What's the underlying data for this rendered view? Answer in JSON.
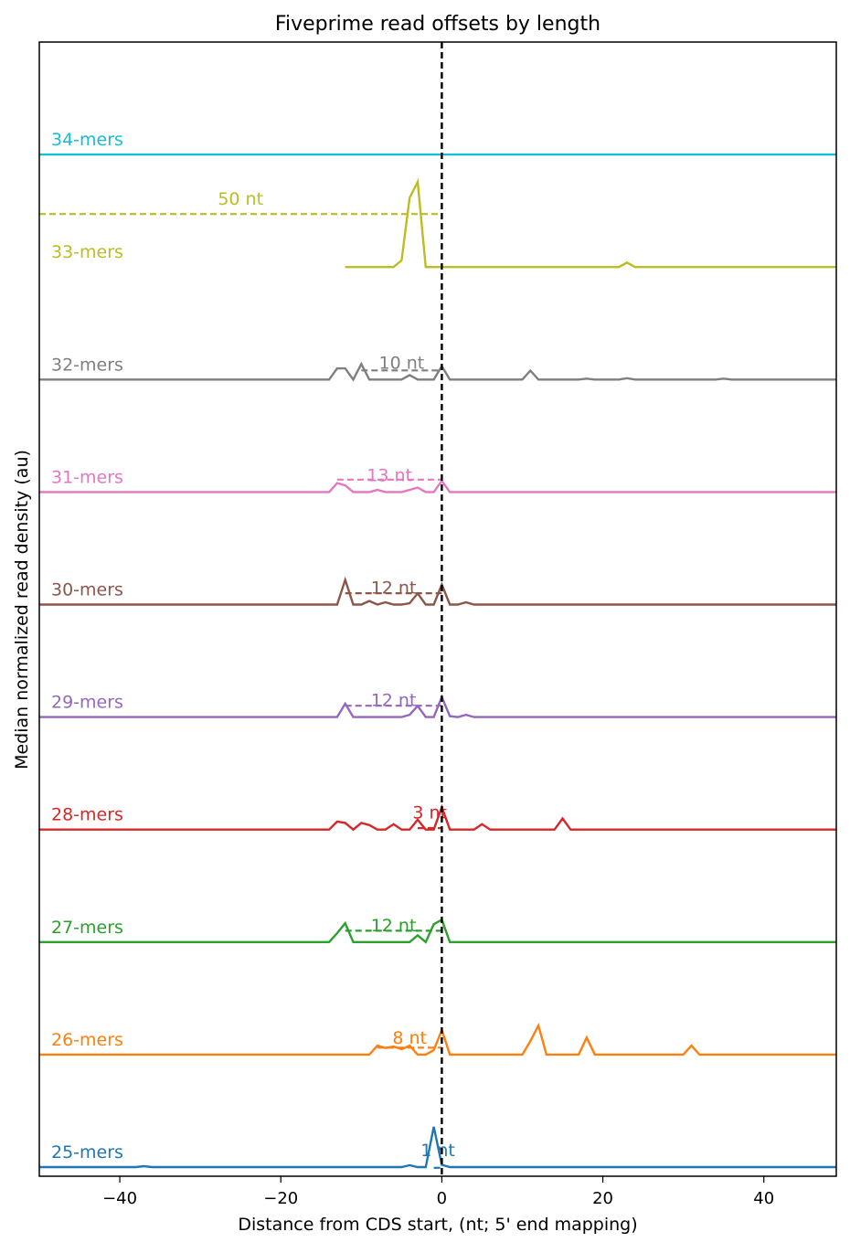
{
  "chart_data": {
    "type": "line",
    "title": "Fiveprime read offsets by length",
    "xlabel": "Distance from CDS start, (nt; 5' end mapping)",
    "ylabel": "Median normalized read density (au)",
    "xlim": [
      -50,
      49
    ],
    "xticks": [
      -40,
      -20,
      0,
      20,
      40
    ],
    "xtick_labels": [
      "−40",
      "−20",
      "0",
      "20",
      "40"
    ],
    "vline_x": 0,
    "grid": false,
    "series": [
      {
        "name": "25-mers",
        "label": "25-mers",
        "color": "#1f77b4",
        "offset_label": "1 nt",
        "offset_nt": 1,
        "points": [
          [
            -50,
            0
          ],
          [
            -38,
            0
          ],
          [
            -37,
            0.02
          ],
          [
            -36,
            0
          ],
          [
            -5,
            0
          ],
          [
            -4,
            0.04
          ],
          [
            -3,
            0
          ],
          [
            -2,
            0
          ],
          [
            -1,
            0.9
          ],
          [
            0,
            0.05
          ],
          [
            1,
            0
          ],
          [
            49,
            0
          ]
        ]
      },
      {
        "name": "26-mers",
        "label": "26-mers",
        "color": "#ff7f0e",
        "offset_label": "8 nt",
        "offset_nt": 8,
        "points": [
          [
            -50,
            0
          ],
          [
            -9,
            0
          ],
          [
            -8,
            0.2
          ],
          [
            -7,
            0.15
          ],
          [
            -6,
            0.18
          ],
          [
            -5,
            0.12
          ],
          [
            -4,
            0.2
          ],
          [
            -3,
            0
          ],
          [
            -2,
            0
          ],
          [
            -1,
            0.1
          ],
          [
            0,
            0.55
          ],
          [
            1,
            0
          ],
          [
            10,
            0
          ],
          [
            11,
            0.3
          ],
          [
            12,
            0.65
          ],
          [
            13,
            0
          ],
          [
            17,
            0
          ],
          [
            18,
            0.38
          ],
          [
            19,
            0
          ],
          [
            30,
            0
          ],
          [
            31,
            0.2
          ],
          [
            32,
            0
          ],
          [
            49,
            0
          ]
        ]
      },
      {
        "name": "27-mers",
        "label": "27-mers",
        "color": "#2ca02c",
        "offset_label": "12 nt",
        "offset_nt": 12,
        "points": [
          [
            -50,
            0
          ],
          [
            -14,
            0
          ],
          [
            -13,
            0.2
          ],
          [
            -12,
            0.42
          ],
          [
            -11,
            0
          ],
          [
            -4,
            0
          ],
          [
            -3,
            0.15
          ],
          [
            -2,
            0
          ],
          [
            -1,
            0.4
          ],
          [
            0,
            0.5
          ],
          [
            1,
            0
          ],
          [
            49,
            0
          ]
        ]
      },
      {
        "name": "28-mers",
        "label": "28-mers",
        "color": "#d62728",
        "offset_label": "3 nt",
        "offset_nt": 3,
        "points": [
          [
            -50,
            0
          ],
          [
            -14,
            0
          ],
          [
            -13,
            0.18
          ],
          [
            -12,
            0.15
          ],
          [
            -11,
            0
          ],
          [
            -10,
            0.15
          ],
          [
            -9,
            0.1
          ],
          [
            -8,
            0
          ],
          [
            -7,
            0
          ],
          [
            -6,
            0.12
          ],
          [
            -5,
            0
          ],
          [
            -4,
            0
          ],
          [
            -3,
            0.22
          ],
          [
            -2,
            0
          ],
          [
            -1,
            0
          ],
          [
            0,
            0.5
          ],
          [
            1,
            0
          ],
          [
            4,
            0
          ],
          [
            5,
            0.12
          ],
          [
            6,
            0
          ],
          [
            14,
            0
          ],
          [
            15,
            0.25
          ],
          [
            16,
            0
          ],
          [
            49,
            0
          ]
        ]
      },
      {
        "name": "29-mers",
        "label": "29-mers",
        "color": "#9467bd",
        "offset_label": "12 nt",
        "offset_nt": 12,
        "points": [
          [
            -50,
            0
          ],
          [
            -13,
            0
          ],
          [
            -12,
            0.3
          ],
          [
            -11,
            0
          ],
          [
            -5,
            0
          ],
          [
            -4,
            0.05
          ],
          [
            -3,
            0.25
          ],
          [
            -2,
            0
          ],
          [
            -1,
            0
          ],
          [
            0,
            0.45
          ],
          [
            1,
            0.02
          ],
          [
            2,
            0
          ],
          [
            3,
            0.05
          ],
          [
            4,
            0
          ],
          [
            49,
            0
          ]
        ]
      },
      {
        "name": "30-mers",
        "label": "30-mers",
        "color": "#8c564b",
        "offset_label": "12 nt",
        "offset_nt": 12,
        "points": [
          [
            -50,
            0
          ],
          [
            -13,
            0
          ],
          [
            -12,
            0.55
          ],
          [
            -11,
            0
          ],
          [
            -10,
            0
          ],
          [
            -9,
            0.08
          ],
          [
            -8,
            0
          ],
          [
            -7,
            0.05
          ],
          [
            -6,
            0
          ],
          [
            -5,
            0
          ],
          [
            -4,
            0.03
          ],
          [
            -3,
            0.25
          ],
          [
            -2,
            0
          ],
          [
            -1,
            0
          ],
          [
            0,
            0.45
          ],
          [
            1,
            0
          ],
          [
            2,
            0
          ],
          [
            3,
            0.05
          ],
          [
            4,
            0
          ],
          [
            49,
            0
          ]
        ]
      },
      {
        "name": "31-mers",
        "label": "31-mers",
        "color": "#e377c2",
        "offset_label": "13 nt",
        "offset_nt": 13,
        "points": [
          [
            -50,
            0
          ],
          [
            -14,
            0
          ],
          [
            -13,
            0.2
          ],
          [
            -12,
            0.15
          ],
          [
            -11,
            0
          ],
          [
            -9,
            0
          ],
          [
            -8,
            0.05
          ],
          [
            -7,
            0
          ],
          [
            -5,
            0
          ],
          [
            -4,
            0.05
          ],
          [
            -3,
            0.1
          ],
          [
            -2,
            0
          ],
          [
            -1,
            0
          ],
          [
            0,
            0.25
          ],
          [
            1,
            0
          ],
          [
            49,
            0
          ]
        ]
      },
      {
        "name": "32-mers",
        "label": "32-mers",
        "color": "#7f7f7f",
        "offset_label": "10 nt",
        "offset_nt": 10,
        "points": [
          [
            -50,
            0
          ],
          [
            -14,
            0
          ],
          [
            -13,
            0.25
          ],
          [
            -12,
            0.25
          ],
          [
            -11,
            0
          ],
          [
            -10,
            0.35
          ],
          [
            -9,
            0
          ],
          [
            -5,
            0
          ],
          [
            -4,
            0.1
          ],
          [
            -3,
            0
          ],
          [
            -2,
            0
          ],
          [
            -1,
            0
          ],
          [
            0,
            0.3
          ],
          [
            1,
            0
          ],
          [
            10,
            0
          ],
          [
            11,
            0.2
          ],
          [
            12,
            0
          ],
          [
            17,
            0
          ],
          [
            18,
            0.02
          ],
          [
            19,
            0
          ],
          [
            22,
            0
          ],
          [
            23,
            0.03
          ],
          [
            24,
            0
          ],
          [
            34,
            0
          ],
          [
            35,
            0.02
          ],
          [
            36,
            0
          ],
          [
            49,
            0
          ]
        ]
      },
      {
        "name": "33-mers",
        "label": "33-mers",
        "color": "#bcbd22",
        "offset_label": "50 nt",
        "offset_nt": 50,
        "points": [
          [
            -12,
            0
          ],
          [
            -6,
            0
          ],
          [
            -5,
            0.15
          ],
          [
            -4,
            1.55
          ],
          [
            -3,
            1.9
          ],
          [
            -2,
            0
          ],
          [
            22,
            0
          ],
          [
            23,
            0.1
          ],
          [
            24,
            0
          ],
          [
            49,
            0
          ]
        ]
      },
      {
        "name": "34-mers",
        "label": "34-mers",
        "color": "#17becf",
        "offset_label": "",
        "offset_nt": null,
        "points": [
          [
            -50,
            0
          ],
          [
            49,
            0
          ]
        ]
      }
    ]
  }
}
